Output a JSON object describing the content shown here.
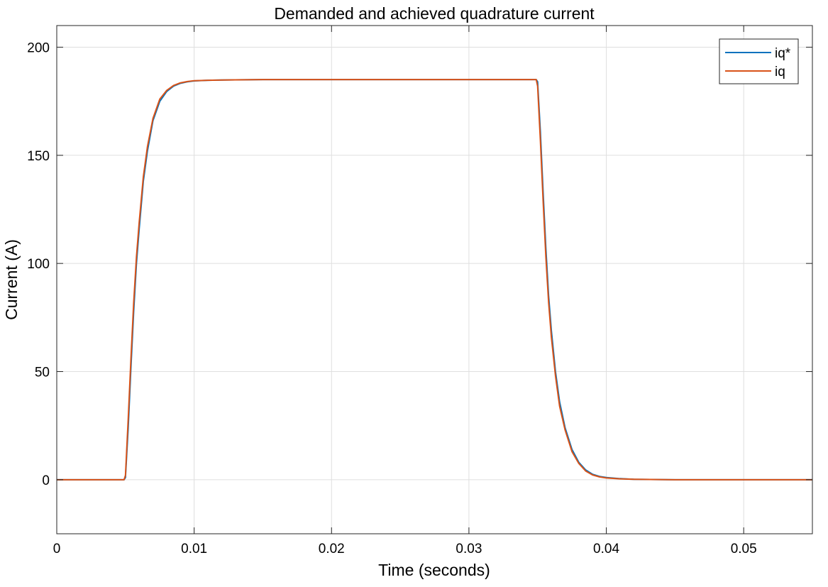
{
  "chart_data": {
    "type": "line",
    "title": "Demanded and achieved quadrature current",
    "xlabel": "Time (seconds)",
    "ylabel": "Current (A)",
    "xlim": [
      0,
      0.055
    ],
    "ylim": [
      -25,
      210
    ],
    "xticks": [
      0,
      0.01,
      0.02,
      0.03,
      0.04,
      0.05
    ],
    "xtick_labels": [
      "0",
      "0.01",
      "0.02",
      "0.03",
      "0.04",
      "0.05"
    ],
    "yticks": [
      0,
      50,
      100,
      150,
      200
    ],
    "ytick_labels": [
      "0",
      "50",
      "100",
      "150",
      "200"
    ],
    "grid": true,
    "legend_position": "top-right",
    "series": [
      {
        "name": "iq*",
        "color": "#0072BD",
        "x": [
          0,
          0.0049,
          0.005,
          0.0052,
          0.0054,
          0.0056,
          0.0058,
          0.006,
          0.0063,
          0.0066,
          0.007,
          0.0075,
          0.008,
          0.0085,
          0.009,
          0.0095,
          0.01,
          0.011,
          0.012,
          0.013,
          0.015,
          0.02,
          0.025,
          0.03,
          0.0349,
          0.035,
          0.0352,
          0.0354,
          0.0356,
          0.0358,
          0.036,
          0.0363,
          0.0366,
          0.037,
          0.0375,
          0.038,
          0.0385,
          0.039,
          0.0395,
          0.04,
          0.041,
          0.042,
          0.045,
          0.05,
          0.055
        ],
        "y": [
          0,
          0,
          1,
          24,
          52,
          78,
          100,
          116,
          138,
          152,
          166,
          175,
          179.5,
          182,
          183.3,
          184,
          184.4,
          184.7,
          184.8,
          184.9,
          185,
          185,
          185,
          185,
          185,
          184,
          161,
          133,
          107,
          85,
          69,
          50,
          36,
          24,
          14,
          8,
          4.5,
          2.5,
          1.5,
          1,
          0.5,
          0.2,
          0,
          0,
          0
        ]
      },
      {
        "name": "iq",
        "color": "#D95319",
        "x": [
          0,
          0.0049,
          0.005,
          0.0052,
          0.0054,
          0.0056,
          0.0058,
          0.006,
          0.0063,
          0.0066,
          0.007,
          0.0075,
          0.008,
          0.0085,
          0.009,
          0.0095,
          0.01,
          0.011,
          0.012,
          0.013,
          0.015,
          0.02,
          0.025,
          0.03,
          0.0349,
          0.035,
          0.0352,
          0.0354,
          0.0356,
          0.0358,
          0.036,
          0.0363,
          0.0366,
          0.037,
          0.0375,
          0.038,
          0.0385,
          0.039,
          0.0395,
          0.04,
          0.041,
          0.042,
          0.045,
          0.05,
          0.055
        ],
        "y": [
          0,
          0,
          2,
          28,
          56,
          82,
          103,
          119,
          140,
          154,
          167,
          176,
          180,
          182.3,
          183.5,
          184.1,
          184.5,
          184.7,
          184.8,
          184.9,
          185,
          185,
          185,
          185,
          185,
          182,
          157,
          129,
          103,
          82,
          66,
          48,
          34,
          23,
          13,
          7.5,
          4,
          2.2,
          1.3,
          0.8,
          0.4,
          0.2,
          0,
          0,
          0
        ]
      }
    ]
  }
}
